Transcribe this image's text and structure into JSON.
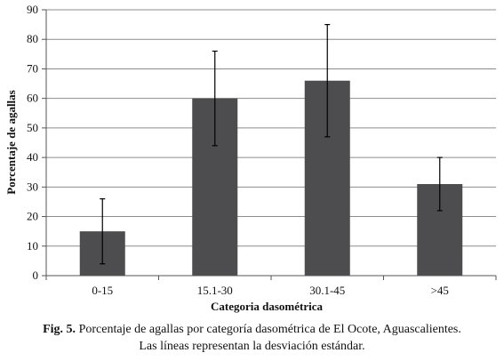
{
  "chart_data": {
    "type": "bar",
    "categories": [
      "0-15",
      "15.1-30",
      "30.1-45",
      ">45"
    ],
    "values": [
      15,
      60,
      66,
      31
    ],
    "error_low": [
      4,
      44,
      47,
      22
    ],
    "error_high": [
      26,
      76,
      85,
      40
    ],
    "xlabel": "Categoria dasométrica",
    "ylabel": "Porcentaje de agallas",
    "ylim": [
      0,
      90
    ],
    "yticks": [
      0,
      10,
      20,
      30,
      40,
      50,
      60,
      70,
      80,
      90
    ],
    "grid": true,
    "bar_color": "#4d4d4f",
    "legend": "none"
  },
  "caption": {
    "label": "Fig. 5.",
    "line1": " Porcentaje de agallas por categoría dasométrica de El Ocote, Aguascalientes.",
    "line2": "Las líneas representan la desviación estándar."
  }
}
